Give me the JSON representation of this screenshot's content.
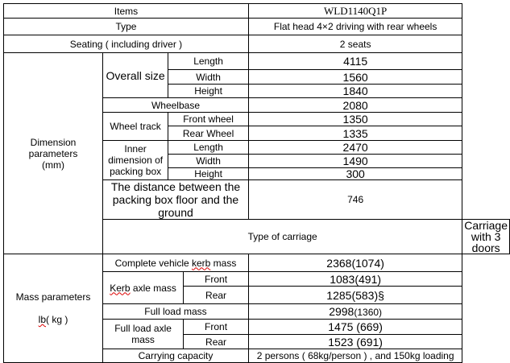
{
  "header": {
    "items_label": "Items",
    "model": "WLD1140Q1P"
  },
  "type": {
    "label": "Type",
    "value": "Flat head 4×2 driving with rear wheels"
  },
  "seating": {
    "label": "Seating ( including driver )",
    "value": "2 seats"
  },
  "dimension": {
    "label": "Dimension parameters",
    "unit": "(mm)",
    "overall_size": {
      "label": "Overall size",
      "length_label": "Length",
      "length": "4115",
      "width_label": "Width",
      "width": "1560",
      "height_label": "Height",
      "height": "1840"
    },
    "wheelbase": {
      "label": "Wheelbase",
      "value": "2080"
    },
    "wheel_track": {
      "label": "Wheel track",
      "front_label": "Front wheel",
      "front": "1350",
      "rear_label": "Rear Wheel",
      "rear": "1335"
    },
    "inner_box": {
      "label": "Inner dimension of packing box",
      "length_label": "Length",
      "length": "2470",
      "width_label": "Width",
      "width": "1490",
      "height_label": "Height",
      "height": "300"
    },
    "floor_distance": {
      "label": "The distance between the packing box floor and the ground",
      "value": "746"
    }
  },
  "carriage": {
    "label": "Type of carriage",
    "value": "Carriage with 3 doors"
  },
  "mass": {
    "label": "Mass parameters",
    "unit_lb": "lb",
    "unit_kg": "( kg )",
    "kerb_mass": {
      "label_pre": "Complete vehicle ",
      "label_kerb": "kerb",
      "label_post": " mass",
      "value": "2368(1074)"
    },
    "kerb_axle": {
      "label_kerb": "Kerb",
      "label_post": " axle mass",
      "front_label": "Front",
      "front": "1083(491)",
      "rear_label": "Rear",
      "rear": "1285(583)§"
    },
    "full_load": {
      "label": "Full load mass",
      "value_lb": "2998",
      "value_kg": "(1360)"
    },
    "full_load_axle": {
      "label": "Full load axle mass",
      "front_label": "Front",
      "front": "1475 (669)",
      "rear_label": "Rear",
      "rear": "1523 (691)"
    },
    "carrying": {
      "label": "Carrying capacity",
      "value": "2 persons ( 68kg/person ) , and 150kg loading"
    }
  }
}
